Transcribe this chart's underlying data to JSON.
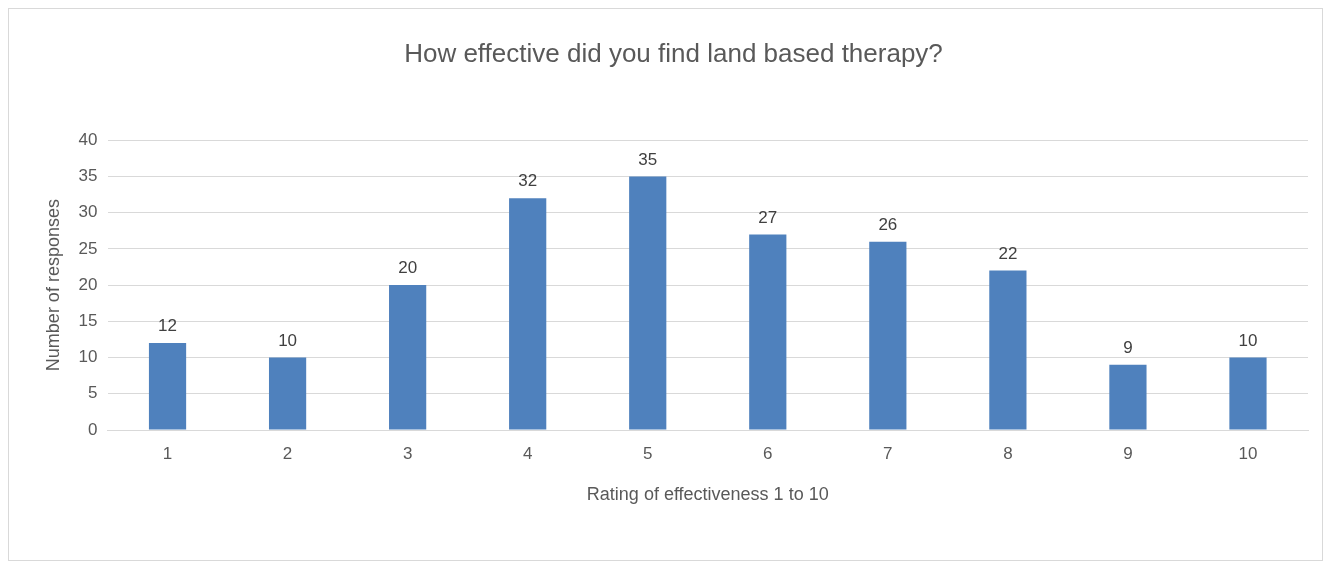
{
  "chart_data": {
    "type": "bar",
    "title": "How effective did you find land based therapy?",
    "xlabel": "Rating of effectiveness 1 to 10",
    "ylabel": "Number of responses",
    "categories": [
      "1",
      "2",
      "3",
      "4",
      "5",
      "6",
      "7",
      "8",
      "9",
      "10"
    ],
    "values": [
      12,
      10,
      20,
      32,
      35,
      27,
      26,
      22,
      9,
      10
    ],
    "color": "#4f81bd",
    "ylim": [
      0,
      40
    ],
    "yticks": [
      0,
      5,
      10,
      15,
      20,
      25,
      30,
      35,
      40
    ],
    "grid": "y",
    "data_labels": true,
    "legend": false
  }
}
